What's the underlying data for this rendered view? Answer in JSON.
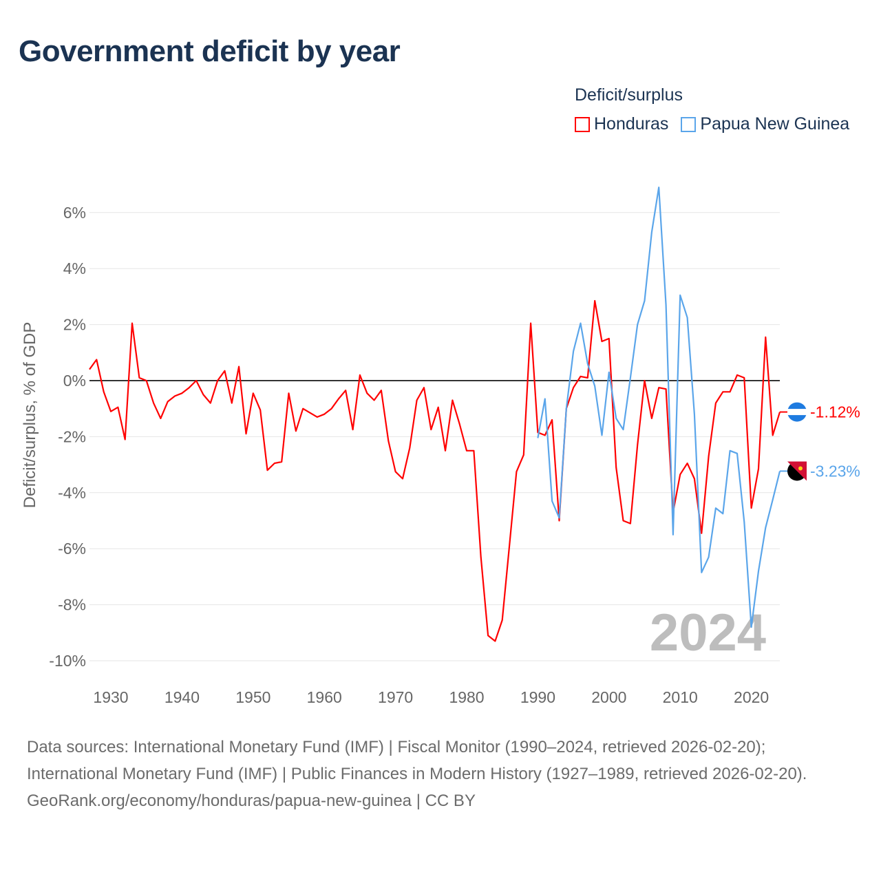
{
  "title": "Government deficit by year",
  "legend": {
    "title": "Deficit/surplus",
    "items": [
      {
        "label": "Honduras",
        "color": "#ff0000"
      },
      {
        "label": "Papua New Guinea",
        "color": "#5aa5ea"
      }
    ]
  },
  "watermark_year": "2024",
  "footer": {
    "sources": "Data sources: International Monetary Fund (IMF) | Fiscal Monitor (1990–2024, retrieved 2026-02-20); International Monetary Fund (IMF) | Public Finances in Modern History (1927–1989, retrieved 2026-02-20).",
    "credit": "GeoRank.org/economy/honduras/papua-new-guinea | CC BY"
  },
  "chart_data": {
    "type": "line",
    "title": "Government deficit by year",
    "xlabel": "",
    "ylabel": "Deficit/surplus, % of GDP",
    "xlim": [
      1927,
      2024
    ],
    "ylim": [
      -10.3,
      7
    ],
    "x_ticks": [
      "1930",
      "1940",
      "1950",
      "1960",
      "1970",
      "1980",
      "1990",
      "2000",
      "2010",
      "2020"
    ],
    "y_ticks": [
      {
        "value": 6,
        "label": "6%"
      },
      {
        "value": 4,
        "label": "4%"
      },
      {
        "value": 2,
        "label": "2%"
      },
      {
        "value": 0,
        "label": "0%"
      },
      {
        "value": -2,
        "label": "-2%"
      },
      {
        "value": -4,
        "label": "-4%"
      },
      {
        "value": -6,
        "label": "-6%"
      },
      {
        "value": -8,
        "label": "-8%"
      },
      {
        "value": -10,
        "label": "-10%"
      }
    ],
    "grid": true,
    "legend_position": "top-right",
    "series": [
      {
        "name": "Honduras",
        "color": "#ff0000",
        "start_year": 1927,
        "end_label": "-1.12%",
        "values": [
          0.4,
          0.75,
          -0.4,
          -1.1,
          -0.95,
          -2.1,
          2.05,
          0.1,
          0.0,
          -0.8,
          -1.35,
          -0.75,
          -0.55,
          -0.45,
          -0.25,
          0.0,
          -0.5,
          -0.8,
          0.0,
          0.35,
          -0.8,
          0.5,
          -1.9,
          -0.45,
          -1.05,
          -3.2,
          -2.95,
          -2.9,
          -0.45,
          -1.8,
          -1.0,
          -1.15,
          -1.3,
          -1.2,
          -1.0,
          -0.65,
          -0.35,
          -1.75,
          0.2,
          -0.45,
          -0.7,
          -0.35,
          -2.15,
          -3.25,
          -3.5,
          -2.4,
          -0.7,
          -0.25,
          -1.75,
          -0.95,
          -2.5,
          -0.7,
          -1.55,
          -2.5,
          -2.5,
          -6.3,
          -9.1,
          -9.3,
          -8.55,
          -5.9,
          -3.25,
          -2.65,
          2.05,
          -1.85,
          -1.95,
          -1.4,
          -5.0,
          -1.0,
          -0.25,
          0.15,
          0.1,
          2.85,
          1.4,
          1.5,
          -3.1,
          -5.0,
          -5.1,
          -2.3,
          0.0,
          -1.35,
          -0.25,
          -0.3,
          -4.7,
          -3.35,
          -2.95,
          -3.5,
          -5.45,
          -2.7,
          -0.8,
          -0.4,
          -0.4,
          0.2,
          0.1,
          -4.55,
          -3.15,
          1.55,
          -1.95,
          -1.12
        ]
      },
      {
        "name": "Papua New Guinea",
        "color": "#5aa5ea",
        "start_year": 1990,
        "end_label": "-3.23%",
        "values": [
          -2.05,
          -0.65,
          -4.3,
          -4.9,
          -1.0,
          1.05,
          2.05,
          0.6,
          -0.2,
          -1.95,
          0.3,
          -1.35,
          -1.75,
          0.1,
          2.0,
          2.85,
          5.3,
          6.9,
          2.7,
          -5.5,
          3.05,
          2.25,
          -1.2,
          -6.85,
          -6.3,
          -4.55,
          -4.75,
          -2.5,
          -2.6,
          -5.05,
          -8.8,
          -6.8,
          -5.25,
          -4.25,
          -3.23
        ]
      }
    ]
  }
}
